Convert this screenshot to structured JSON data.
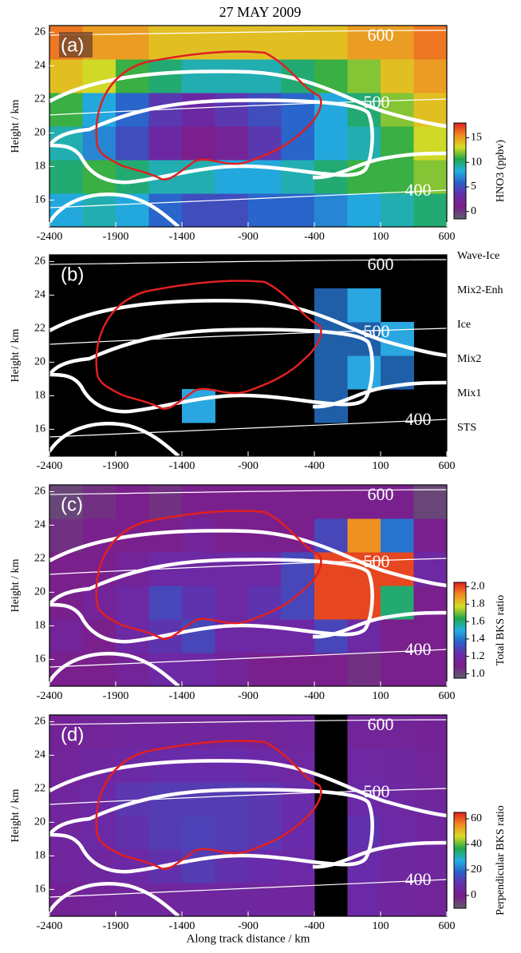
{
  "title": "27 MAY 2009",
  "chart_data": [
    {
      "type": "heatmap",
      "panel_label": "(a)",
      "ylabel": "Height / km",
      "xlim": [
        -2400,
        600
      ],
      "ylim": [
        14.4,
        26.4
      ],
      "xticks": [
        -2400,
        -1900,
        -1400,
        -900,
        -400,
        100,
        600
      ],
      "yticks": [
        16,
        18,
        20,
        22,
        24,
        26
      ],
      "xbins": [
        -2400,
        -2150,
        -1900,
        -1650,
        -1400,
        -1150,
        -900,
        -650,
        -400,
        -150,
        100,
        350,
        600
      ],
      "ybins": [
        14.4,
        16.4,
        18.4,
        20.4,
        22.4,
        24.4,
        26.4
      ],
      "z": [
        [
          8,
          9,
          8,
          6,
          5,
          5,
          6,
          6,
          7,
          8,
          9,
          10
        ],
        [
          10,
          11,
          10,
          9,
          9,
          8,
          8,
          9,
          10,
          11,
          11,
          12
        ],
        [
          9,
          7,
          5,
          3,
          1,
          2,
          4,
          6,
          8,
          9,
          11,
          13
        ],
        [
          11,
          8,
          6,
          4,
          3,
          4,
          5,
          6,
          8,
          10,
          12,
          14
        ],
        [
          14,
          13,
          11,
          10,
          9,
          9,
          9,
          10,
          11,
          12,
          14,
          15
        ],
        [
          16,
          15,
          15,
          14,
          14,
          14,
          14,
          14,
          14,
          15,
          15,
          16
        ]
      ],
      "contour_labels": [
        600,
        500,
        400
      ],
      "colorbar": {
        "label": "HNO3 (ppbv)",
        "lim": [
          -1.5,
          18
        ],
        "ticks": [
          0,
          5,
          10,
          15
        ],
        "colors": [
          "#5e5e6e",
          "#7a1f8a",
          "#6a2aa8",
          "#2a5fc8",
          "#22b0e0",
          "#23a848",
          "#d8dc24",
          "#f08a22",
          "#e02020"
        ]
      }
    },
    {
      "type": "classes",
      "panel_label": "(b)",
      "ylabel": "Height / km",
      "xlim": [
        -2400,
        600
      ],
      "ylim": [
        14.4,
        26.4
      ],
      "xticks": [
        -2400,
        -1900,
        -1400,
        -900,
        -400,
        100,
        600
      ],
      "yticks": [
        16,
        18,
        20,
        22,
        24,
        26
      ],
      "xbins": [
        -2400,
        -2150,
        -1900,
        -1650,
        -1400,
        -1150,
        -900,
        -650,
        -400,
        -150,
        100,
        350,
        600
      ],
      "ybins": [
        14.4,
        16.4,
        18.4,
        20.4,
        22.4,
        24.4,
        26.4
      ],
      "z": [
        [
          null,
          null,
          null,
          null,
          null,
          null,
          null,
          null,
          null,
          null,
          null,
          null
        ],
        [
          null,
          null,
          null,
          null,
          4,
          null,
          null,
          null,
          5,
          null,
          null,
          null
        ],
        [
          null,
          null,
          null,
          null,
          null,
          null,
          null,
          null,
          5,
          4,
          5,
          null
        ],
        [
          null,
          null,
          null,
          null,
          null,
          null,
          null,
          null,
          5,
          5,
          4,
          null
        ],
        [
          null,
          null,
          null,
          null,
          null,
          null,
          null,
          null,
          5,
          4,
          null,
          null
        ],
        [
          null,
          null,
          null,
          null,
          null,
          null,
          null,
          null,
          null,
          null,
          null,
          null
        ]
      ],
      "contour_labels": [
        600,
        500,
        400
      ],
      "classes": [
        {
          "name": "Wave-Ice",
          "color": "#8a2a9a"
        },
        {
          "name": "Mix2-Enh",
          "color": "#e8701a"
        },
        {
          "name": "Ice",
          "color": "#f2d040"
        },
        {
          "name": "Mix2",
          "color": "#1e8a3a"
        },
        {
          "name": "Mix1",
          "color": "#2aa6e0"
        },
        {
          "name": "STS",
          "color": "#1f5fa8"
        }
      ]
    },
    {
      "type": "heatmap",
      "panel_label": "(c)",
      "ylabel": "Height / km",
      "xlim": [
        -2400,
        600
      ],
      "ylim": [
        14.4,
        26.4
      ],
      "xticks": [
        -2400,
        -1900,
        -1400,
        -900,
        -400,
        100,
        600
      ],
      "yticks": [
        16,
        18,
        20,
        22,
        24,
        26
      ],
      "xbins": [
        -2400,
        -2150,
        -1900,
        -1650,
        -1400,
        -1150,
        -900,
        -650,
        -400,
        -150,
        100,
        350,
        600
      ],
      "ybins": [
        14.4,
        16.4,
        18.4,
        20.4,
        22.4,
        24.4,
        26.4
      ],
      "z": [
        [
          1.1,
          1.1,
          1.15,
          1.2,
          1.2,
          1.15,
          1.1,
          1.1,
          1.1,
          1.05,
          1.1,
          1.1
        ],
        [
          1.15,
          1.1,
          1.2,
          1.25,
          1.3,
          1.2,
          1.2,
          1.2,
          1.3,
          1.2,
          1.1,
          1.1
        ],
        [
          1.1,
          1.15,
          1.2,
          1.3,
          1.25,
          1.2,
          1.25,
          1.3,
          2.0,
          2.0,
          1.6,
          1.1
        ],
        [
          1.1,
          1.1,
          1.15,
          1.2,
          1.2,
          1.2,
          1.2,
          1.3,
          2.0,
          2.0,
          2.0,
          1.2
        ],
        [
          1.05,
          1.1,
          1.1,
          1.1,
          1.15,
          1.1,
          1.1,
          1.1,
          1.3,
          1.9,
          1.4,
          1.1
        ],
        [
          1.0,
          1.05,
          1.1,
          1.05,
          1.1,
          1.1,
          1.1,
          1.1,
          1.1,
          1.1,
          1.1,
          1.0
        ]
      ],
      "contour_labels": [
        600,
        500,
        400
      ],
      "colorbar": {
        "label": "Total BKS ratio",
        "lim": [
          0.95,
          2.05
        ],
        "ticks": [
          {
            "value": 1.0,
            "label": "1.0"
          },
          1.2,
          1.4,
          1.6,
          1.8,
          {
            "value": 2.0,
            "label": "2.0"
          }
        ],
        "colors": [
          "#5e5e6e",
          "#7a1f8a",
          "#6a2aa8",
          "#2a5fc8",
          "#22b0e0",
          "#23a848",
          "#d8dc24",
          "#f08a22",
          "#e02020"
        ]
      }
    },
    {
      "type": "heatmap",
      "panel_label": "(d)",
      "ylabel": "Height / km",
      "xlabel": "Along track distance / km",
      "xlim": [
        -2400,
        600
      ],
      "ylim": [
        14.4,
        26.4
      ],
      "xticks": [
        -2400,
        -1900,
        -1400,
        -900,
        -400,
        100,
        600
      ],
      "yticks": [
        16,
        18,
        20,
        22,
        24,
        26
      ],
      "xbins": [
        -2400,
        -2150,
        -1900,
        -1650,
        -1400,
        -1150,
        -900,
        -650,
        -400,
        -150,
        100,
        350,
        600
      ],
      "ybins": [
        14.4,
        16.4,
        18.4,
        20.4,
        22.4,
        24.4,
        26.4
      ],
      "z": [
        [
          3,
          4,
          5,
          5,
          6,
          6,
          5,
          5,
          null,
          8,
          5,
          4
        ],
        [
          5,
          6,
          8,
          10,
          12,
          10,
          9,
          8,
          null,
          9,
          6,
          5
        ],
        [
          5,
          8,
          10,
          12,
          13,
          12,
          11,
          9,
          null,
          10,
          8,
          5
        ],
        [
          5,
          8,
          11,
          12,
          12,
          12,
          11,
          9,
          null,
          8,
          7,
          5
        ],
        [
          4,
          6,
          8,
          9,
          9,
          9,
          8,
          7,
          null,
          7,
          6,
          4
        ],
        [
          3,
          4,
          5,
          5,
          5,
          5,
          4,
          5,
          null,
          4,
          4,
          3
        ]
      ],
      "contour_labels": [
        600,
        500,
        400
      ],
      "colorbar": {
        "label": "Perpendicular BKS ratio",
        "lim": [
          -10,
          65
        ],
        "ticks": [
          0,
          20,
          40,
          60
        ],
        "colors": [
          "#5e5e6e",
          "#7a1f8a",
          "#6a2aa8",
          "#2a5fc8",
          "#22b0e0",
          "#23a848",
          "#d8dc24",
          "#f08a22",
          "#e02020"
        ]
      }
    }
  ]
}
